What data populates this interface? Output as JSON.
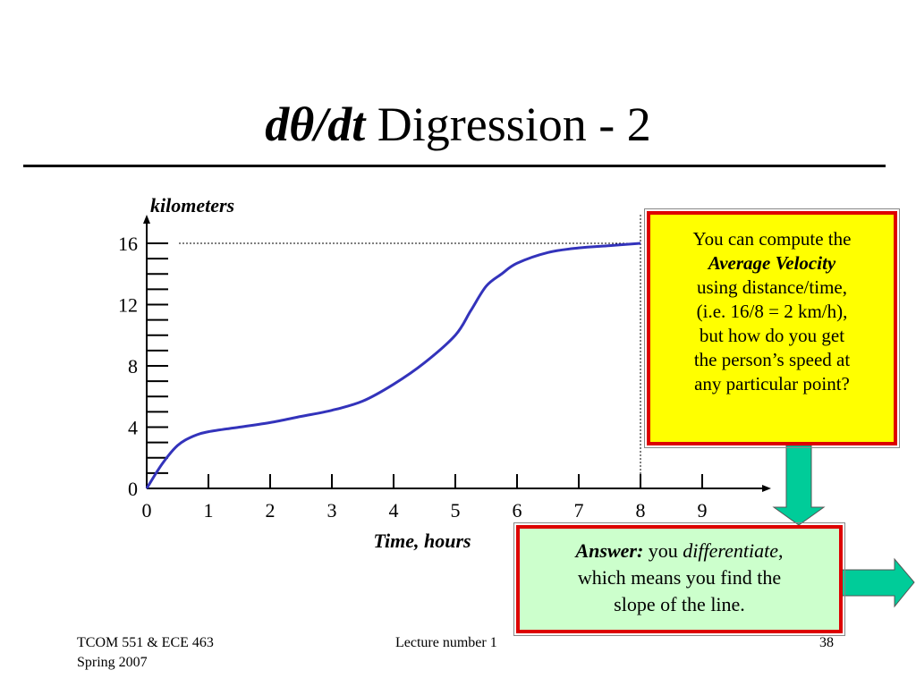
{
  "slide": {
    "title_math": "dθ/dt",
    "title_text": " Digression - 2"
  },
  "chart_data": {
    "type": "line",
    "title": "",
    "xlabel": "Time, hours",
    "ylabel": "kilometers",
    "xlim": [
      0,
      9
    ],
    "ylim": [
      0,
      16
    ],
    "x_ticks": [
      0,
      1,
      2,
      3,
      4,
      5,
      6,
      7,
      8,
      9
    ],
    "y_ticks": [
      0,
      4,
      8,
      12,
      16
    ],
    "y_minor_step": 1,
    "grid": false,
    "reference_lines": [
      {
        "orientation": "horizontal",
        "value": 16,
        "style": "dotted"
      },
      {
        "orientation": "vertical",
        "value": 8,
        "style": "dotted"
      }
    ],
    "series": [
      {
        "color": "#3333bb",
        "x": [
          0,
          0.25,
          0.5,
          0.75,
          1,
          1.5,
          2,
          2.5,
          3,
          3.5,
          4,
          4.5,
          5,
          5.25,
          5.5,
          5.75,
          6,
          6.5,
          7,
          7.5,
          8
        ],
        "y": [
          0,
          1.6,
          2.8,
          3.4,
          3.7,
          4,
          4.3,
          4.7,
          5.1,
          5.7,
          6.8,
          8.2,
          10.0,
          11.6,
          13.2,
          14.0,
          14.7,
          15.4,
          15.7,
          15.85,
          16
        ]
      }
    ]
  },
  "callouts": {
    "top": {
      "line1": "You can compute the",
      "line2_bold_italic": "Average Velocity",
      "line3": "using distance/time,",
      "line4": "(i.e. 16/8 = 2 km/h),",
      "line5": "but how do you get",
      "line6": "the person’s speed at",
      "line7": "any particular point?"
    },
    "bottom": {
      "answer_label": "Answer:",
      "part1": " you ",
      "part2_italic": "differentiate",
      "part3": ",",
      "line2": "which means you find the",
      "line3": "slope of the line."
    }
  },
  "arrows": {
    "color": "#00cc99"
  },
  "footer": {
    "course_line1": "TCOM 551 & ECE 463",
    "course_line2": "Spring 2007",
    "lecture": "Lecture number 1",
    "page": "38"
  }
}
